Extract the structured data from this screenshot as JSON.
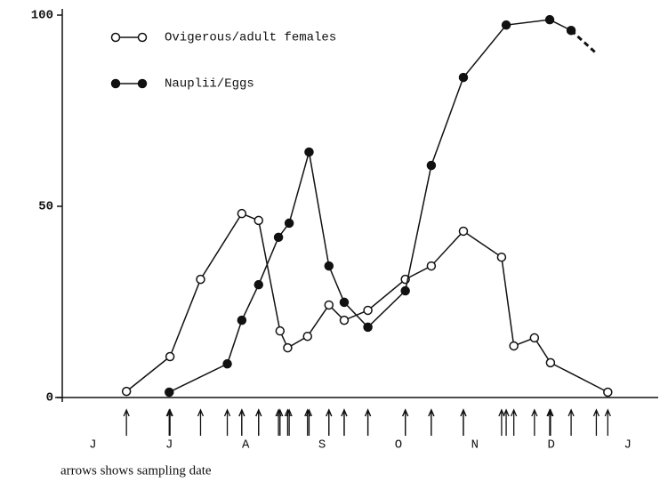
{
  "chart_data": {
    "type": "line",
    "footnote": "arrows shows sampling date",
    "xticks": [
      {
        "value": 0,
        "label": "J"
      },
      {
        "value": 1,
        "label": "J"
      },
      {
        "value": 2,
        "label": "A"
      },
      {
        "value": 3,
        "label": "S"
      },
      {
        "value": 4,
        "label": "O"
      },
      {
        "value": 5,
        "label": "N"
      },
      {
        "value": 6,
        "label": "D"
      },
      {
        "value": 7,
        "label": "J"
      }
    ],
    "xlim": [
      -0.4,
      7.4
    ],
    "ylim": [
      0,
      100
    ],
    "yticks": [
      0,
      50,
      100
    ],
    "legend": "upper left",
    "series": [
      {
        "name": "Ovigerous/adult females",
        "color": "#111111",
        "marker": "open",
        "x": [
          0.44,
          1.01,
          1.41,
          1.95,
          2.17,
          2.45,
          2.55,
          2.81,
          3.09,
          3.29,
          3.6,
          4.09,
          4.43,
          4.85,
          5.35,
          5.51,
          5.78,
          5.99,
          6.74
        ],
        "values": [
          1.6,
          10.7,
          30.9,
          48.1,
          46.3,
          17.4,
          13.0,
          16.0,
          24.2,
          20.2,
          22.8,
          30.9,
          34.4,
          43.5,
          36.7,
          13.5,
          15.6,
          9.1,
          1.4
        ]
      },
      {
        "name": "Nauplii/Eggs",
        "color": "#111111",
        "marker": "filled",
        "dashed_tail": true,
        "x": [
          1.0,
          1.76,
          1.95,
          2.17,
          2.43,
          2.57,
          2.83,
          3.09,
          3.29,
          3.6,
          4.09,
          4.43,
          4.85,
          5.41,
          5.98,
          6.26,
          6.59
        ],
        "values": [
          1.4,
          8.8,
          20.2,
          29.5,
          41.9,
          45.6,
          64.2,
          34.4,
          24.9,
          18.4,
          27.9,
          60.7,
          83.7,
          97.4,
          98.8,
          96.0,
          90.0
        ]
      }
    ]
  }
}
